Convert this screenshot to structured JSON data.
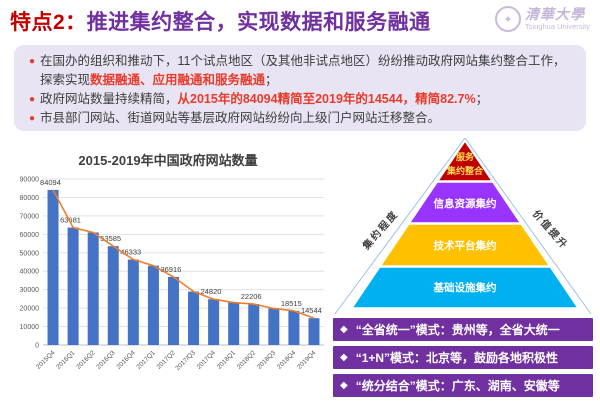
{
  "header": {
    "title_prefix": "特点2：",
    "title_rest": "推进集约整合，实现数据和服务融通",
    "logo_zh": "清華大學",
    "logo_en": "Tsinghua University",
    "logo_emblem_glyph": "✦"
  },
  "bullets": [
    {
      "pre": "在国办的组织和推动下，11个试点地区（及其他非试点地区）纷纷推动政府网站集约整合工作，探索实现",
      "highlight": "数据融通、应用融通和服务融通",
      "post": "；"
    },
    {
      "pre": "政府网站数量持续精简，",
      "highlight": "从2015年的84094精简至2019年的14544，精简82.7%",
      "post": "；"
    },
    {
      "pre": "市县部门网站、街道网站等基层政府网站纷纷向上级门户网站迁移整合。",
      "highlight": "",
      "post": ""
    }
  ],
  "bullet_glyph": "●",
  "chart_data": {
    "type": "bar+line",
    "title": "2015-2019年中国政府网站数量",
    "categories": [
      "2015Q4",
      "2016Q1",
      "2016Q2",
      "2016Q3",
      "2016Q4",
      "2017Q1",
      "2017Q2",
      "2017/Q3",
      "2017Q4",
      "2018Q1",
      "2018Q2",
      "2018Q3",
      "2018Q4",
      "2019Q4"
    ],
    "values": [
      84094,
      63681,
      61000,
      53585,
      46333,
      43000,
      36916,
      29000,
      24820,
      23000,
      22206,
      19800,
      18515,
      14544
    ],
    "labels": [
      "84094",
      "63681",
      "",
      "53585",
      "46333",
      "",
      "36916",
      "",
      "24820",
      "",
      "22206",
      "",
      "18515",
      "14544"
    ],
    "ylim": [
      0,
      90000
    ],
    "ytick_step": 10000,
    "bar_color": "#4472C4",
    "line_color": "#ED7D31",
    "grid_color": "#E2E2E2",
    "axis_color": "#BFBFBF",
    "tick_text_color": "#595959",
    "label_text_color": "#404040",
    "legend": "none",
    "grid": "horizontal"
  },
  "pyramid": {
    "top_level": {
      "label_line1": "服务",
      "label_line2": "集约整合",
      "color": "#C00000",
      "text_color": "#FFDD55"
    },
    "levels": [
      {
        "label": "信息资源集约",
        "color": "#9933FF",
        "text_color": "#FFFFFF"
      },
      {
        "label": "技术平台集约",
        "color": "#FFC000",
        "text_color": "#FFFFFF"
      },
      {
        "label": "基础设施集约",
        "color": "#00B0F0",
        "text_color": "#FFFFFF"
      }
    ],
    "left_axis_label": "集约程度",
    "right_axis_label": "价值提升",
    "edge_line_color": "#9DC3E6",
    "axis_text_color": "#404040"
  },
  "modes": {
    "bar_color": "#7030A0",
    "diamond_glyph": "◆",
    "items": [
      {
        "text": "“全省统一”模式：贵州等，全省大统一"
      },
      {
        "text": "“1+N”模式：北京等，鼓励各地积极性"
      },
      {
        "text": "“统分结合”模式：广东、湖南、安徽等"
      }
    ]
  }
}
